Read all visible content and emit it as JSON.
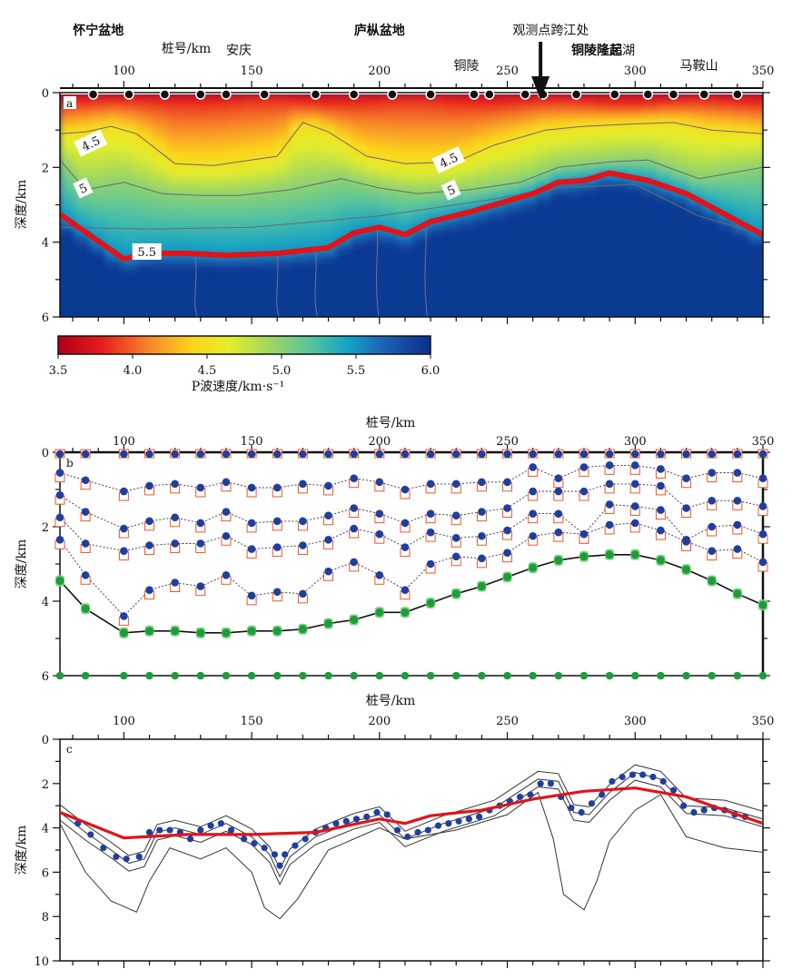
{
  "chart_data": [
    {
      "type": "heatmap",
      "panel": "a",
      "xlabel": "桩号/km",
      "ylabel": "深度/km",
      "xlim": [
        75,
        350
      ],
      "ylim": [
        0,
        6
      ],
      "x_ticks": [
        "100",
        "150",
        "200",
        "250",
        "300",
        "350"
      ],
      "y_ticks": [
        "0",
        "2",
        "4",
        "6"
      ],
      "place_labels": [
        {
          "text": "怀宁盆地",
          "x": 90,
          "bold": true,
          "row": 0
        },
        {
          "text": "庐枞盆地",
          "x": 200,
          "bold": true,
          "row": 0
        },
        {
          "text": "观测点跨江处",
          "x": 267,
          "bold": false,
          "row": 0
        },
        {
          "text": "安庆",
          "x": 145,
          "bold": false,
          "row": 1
        },
        {
          "text": "铜陵",
          "x": 234,
          "bold": false,
          "row": 2
        },
        {
          "text": "铜陵隆起",
          "x": 285,
          "bold": true,
          "row": 1
        },
        {
          "text": "芜湖",
          "x": 295,
          "bold": false,
          "row": 1
        },
        {
          "text": "马鞍山",
          "x": 325,
          "bold": false,
          "row": 2
        }
      ],
      "arrow_x": 263,
      "stations_x": [
        88,
        102,
        116,
        130,
        140,
        155,
        175,
        190,
        205,
        220,
        237,
        243,
        257,
        264,
        277,
        292,
        305,
        315,
        327,
        340
      ],
      "contour_labels": [
        {
          "text": "4.5",
          "x": 87,
          "depth": 1.35
        },
        {
          "text": "4.5",
          "x": 227,
          "depth": 1.8
        },
        {
          "text": "5",
          "x": 84,
          "depth": 2.55
        },
        {
          "text": "5",
          "x": 228,
          "depth": 2.6
        },
        {
          "text": "5.5",
          "x": 109,
          "depth": 4.25
        }
      ],
      "interface_5_5": {
        "x": [
          75,
          100,
          110,
          125,
          140,
          160,
          180,
          190,
          200,
          210,
          220,
          235,
          245,
          260,
          270,
          280,
          290,
          305,
          320,
          335,
          350
        ],
        "depth": [
          3.25,
          4.45,
          4.3,
          4.3,
          4.35,
          4.3,
          4.15,
          3.75,
          3.6,
          3.8,
          3.45,
          3.2,
          3.0,
          2.7,
          2.4,
          2.35,
          2.15,
          2.35,
          2.7,
          3.25,
          3.8
        ]
      },
      "contour_4_5": {
        "x": [
          75,
          85,
          95,
          105,
          120,
          135,
          160,
          170,
          180,
          195,
          210,
          230,
          245,
          265,
          280,
          295,
          315,
          330,
          350
        ],
        "depth": [
          1.1,
          1.05,
          0.9,
          1.1,
          1.9,
          1.95,
          1.7,
          0.8,
          1.05,
          1.7,
          1.9,
          1.85,
          1.4,
          1.0,
          0.9,
          0.85,
          0.8,
          1.0,
          1.1
        ]
      },
      "contour_5": {
        "x": [
          75,
          85,
          100,
          115,
          130,
          145,
          165,
          185,
          200,
          215,
          235,
          255,
          270,
          290,
          305,
          325,
          350
        ],
        "depth": [
          1.8,
          2.6,
          2.4,
          2.7,
          2.75,
          2.75,
          2.6,
          2.3,
          2.55,
          2.7,
          2.6,
          2.4,
          2.0,
          1.85,
          1.8,
          2.3,
          2.0
        ]
      },
      "contour_5_5_upper": {
        "x": [
          75,
          110,
          150,
          200,
          240,
          270,
          300,
          325,
          350
        ],
        "depth": [
          3.6,
          3.65,
          3.6,
          3.3,
          2.9,
          2.55,
          2.45,
          3.3,
          3.8
        ]
      },
      "colorbar": {
        "label": "P波速度/km·s⁻¹",
        "ticks": [
          "3.5",
          "4.0",
          "4.5",
          "5.0",
          "5.5",
          "6.0"
        ],
        "min": 3.5,
        "max": 6.0,
        "stops": [
          {
            "v": 3.5,
            "color": "#b00018"
          },
          {
            "v": 3.8,
            "color": "#e71d1d"
          },
          {
            "v": 4.1,
            "color": "#f7832a"
          },
          {
            "v": 4.4,
            "color": "#fcd41c"
          },
          {
            "v": 4.65,
            "color": "#e3ee2a"
          },
          {
            "v": 4.9,
            "color": "#a6d95c"
          },
          {
            "v": 5.2,
            "color": "#55c3a0"
          },
          {
            "v": 5.45,
            "color": "#13a2c6"
          },
          {
            "v": 5.7,
            "color": "#1c5fb3"
          },
          {
            "v": 6.0,
            "color": "#0b2f8c"
          }
        ]
      },
      "colors": {
        "interface": "#e0141a",
        "contour": "#6b6b6b"
      }
    },
    {
      "type": "scatter",
      "panel": "b",
      "xlabel": "桩号/km",
      "ylabel": "深度/km",
      "xlim": [
        75,
        350
      ],
      "ylim": [
        0,
        6
      ],
      "x_ticks": [
        "100",
        "150",
        "200",
        "250",
        "300",
        "350"
      ],
      "y_ticks": [
        "0",
        "2",
        "4",
        "6"
      ],
      "node_x": [
        75,
        85,
        100,
        110,
        120,
        130,
        140,
        150,
        160,
        170,
        180,
        190,
        200,
        210,
        220,
        230,
        240,
        250,
        260,
        270,
        280,
        290,
        300,
        310,
        320,
        330,
        340,
        350
      ],
      "layers_depth": [
        [
          0,
          0,
          0,
          0,
          0,
          0,
          0,
          0,
          0,
          0,
          0,
          0,
          0,
          0,
          0,
          0,
          0,
          0,
          0,
          0,
          0,
          0,
          0,
          0,
          0,
          0,
          0,
          0
        ],
        [
          0.55,
          0.75,
          1.05,
          0.9,
          0.85,
          0.95,
          0.8,
          0.95,
          0.95,
          0.85,
          0.9,
          0.7,
          0.8,
          1.0,
          0.85,
          0.85,
          0.8,
          0.8,
          0.4,
          0.7,
          0.4,
          0.35,
          0.35,
          0.45,
          0.7,
          0.55,
          0.55,
          0.7
        ],
        [
          1.15,
          1.6,
          2.05,
          1.85,
          1.75,
          1.9,
          1.6,
          1.9,
          1.85,
          1.85,
          1.7,
          1.5,
          1.65,
          1.9,
          1.65,
          1.7,
          1.6,
          1.5,
          1.05,
          1.05,
          1.05,
          0.85,
          0.85,
          0.9,
          1.5,
          1.3,
          1.3,
          1.45
        ],
        [
          1.75,
          2.45,
          2.65,
          2.5,
          2.45,
          2.45,
          2.25,
          2.6,
          2.55,
          2.5,
          2.35,
          2.05,
          2.2,
          2.55,
          2.15,
          2.3,
          2.25,
          2.1,
          1.65,
          1.65,
          2.2,
          1.4,
          1.45,
          1.55,
          2.35,
          2.0,
          1.95,
          2.2
        ],
        [
          2.35,
          3.3,
          4.4,
          3.7,
          3.5,
          3.6,
          3.3,
          3.85,
          3.75,
          3.8,
          3.2,
          2.95,
          3.3,
          3.7,
          3.0,
          2.8,
          2.85,
          2.7,
          2.25,
          2.15,
          2.2,
          1.95,
          1.9,
          2.1,
          2.4,
          2.65,
          2.6,
          2.95
        ]
      ],
      "basement_depth": [
        3.45,
        4.2,
        4.85,
        4.8,
        4.8,
        4.85,
        4.85,
        4.8,
        4.8,
        4.75,
        4.6,
        4.5,
        4.3,
        4.3,
        4.05,
        3.8,
        3.6,
        3.35,
        3.1,
        2.9,
        2.8,
        2.75,
        2.75,
        2.9,
        3.15,
        3.45,
        3.8,
        4.1
      ],
      "bottom_depth": 6,
      "colors": {
        "node": "#1f3f9e",
        "square": "#e8582a",
        "basement": "#1f9c3a",
        "line": "#111111"
      }
    },
    {
      "type": "line",
      "panel": "c",
      "xlabel": "桩号/km",
      "ylabel": "深度/km",
      "xlim": [
        75,
        350
      ],
      "ylim": [
        0,
        10
      ],
      "x_ticks": [
        "100",
        "150",
        "200",
        "250",
        "300",
        "350"
      ],
      "y_ticks": [
        "0",
        "2",
        "4",
        "6",
        "8",
        "10"
      ],
      "red_line": {
        "x": [
          75,
          100,
          125,
          150,
          175,
          200,
          210,
          220,
          240,
          260,
          280,
          300,
          320,
          350
        ],
        "depth": [
          3.3,
          4.45,
          4.3,
          4.3,
          4.2,
          3.6,
          3.8,
          3.45,
          3.2,
          2.7,
          2.35,
          2.2,
          2.6,
          3.8
        ]
      },
      "blue_points": {
        "x": [
          82,
          87,
          92,
          97,
          101,
          106,
          110,
          114,
          118,
          122,
          126,
          130,
          134,
          138,
          142,
          147,
          151,
          155,
          159,
          161,
          163,
          167,
          171,
          175,
          179,
          183,
          187,
          191,
          195,
          199,
          203,
          207,
          211,
          215,
          219,
          223,
          227,
          231,
          235,
          239,
          243,
          247,
          251,
          255,
          259,
          263,
          267,
          271,
          275,
          279,
          283,
          287,
          291,
          295,
          299,
          303,
          307,
          311,
          315,
          319,
          323,
          327,
          331,
          335,
          339,
          343
        ],
        "depth": [
          3.8,
          4.3,
          4.9,
          5.3,
          5.4,
          5.3,
          4.2,
          4.1,
          4.1,
          4.2,
          4.5,
          4.1,
          3.9,
          3.8,
          4.1,
          4.5,
          4.7,
          4.9,
          5.2,
          5.7,
          5.2,
          4.8,
          4.5,
          4.2,
          4.0,
          3.8,
          3.7,
          3.6,
          3.5,
          3.3,
          3.4,
          4.1,
          4.4,
          4.2,
          4.1,
          3.9,
          3.8,
          3.7,
          3.6,
          3.5,
          3.2,
          3.0,
          2.8,
          2.6,
          2.5,
          2.0,
          2.0,
          2.6,
          3.1,
          3.3,
          2.9,
          2.5,
          1.9,
          1.7,
          1.6,
          1.6,
          1.7,
          1.9,
          2.3,
          3.0,
          3.3,
          3.2,
          3.1,
          3.2,
          3.4,
          3.5
        ]
      },
      "outline_inner": {
        "x": [
          75,
          85,
          95,
          102,
          108,
          113,
          120,
          130,
          140,
          150,
          157,
          161,
          165,
          175,
          190,
          200,
          210,
          225,
          245,
          262,
          270,
          276,
          282,
          290,
          300,
          310,
          320,
          335,
          350
        ],
        "depth": [
          3.3,
          4.2,
          5.0,
          5.6,
          5.4,
          4.2,
          4.0,
          4.3,
          3.8,
          4.4,
          5.2,
          6.2,
          5.3,
          4.4,
          3.7,
          3.4,
          4.5,
          3.8,
          3.1,
          1.8,
          1.9,
          3.3,
          3.4,
          2.4,
          1.5,
          1.8,
          3.0,
          3.1,
          3.6
        ]
      },
      "outline_outer": {
        "x": [
          75,
          85,
          95,
          105,
          110,
          118,
          130,
          140,
          150,
          155,
          161,
          168,
          180,
          200,
          210,
          230,
          250,
          262,
          268,
          272,
          280,
          285,
          290,
          300,
          310,
          320,
          335,
          350
        ],
        "depth": [
          3.8,
          6.0,
          7.3,
          7.8,
          6.4,
          4.9,
          5.4,
          4.9,
          6.0,
          7.6,
          8.1,
          7.2,
          5.0,
          4.0,
          4.5,
          4.1,
          3.4,
          2.4,
          4.5,
          7.0,
          7.7,
          6.4,
          4.6,
          3.2,
          2.5,
          4.4,
          4.9,
          5.1
        ]
      },
      "colors": {
        "red_line": "#e0141a",
        "points": "#1f3f9e",
        "outline": "#333333"
      }
    }
  ]
}
